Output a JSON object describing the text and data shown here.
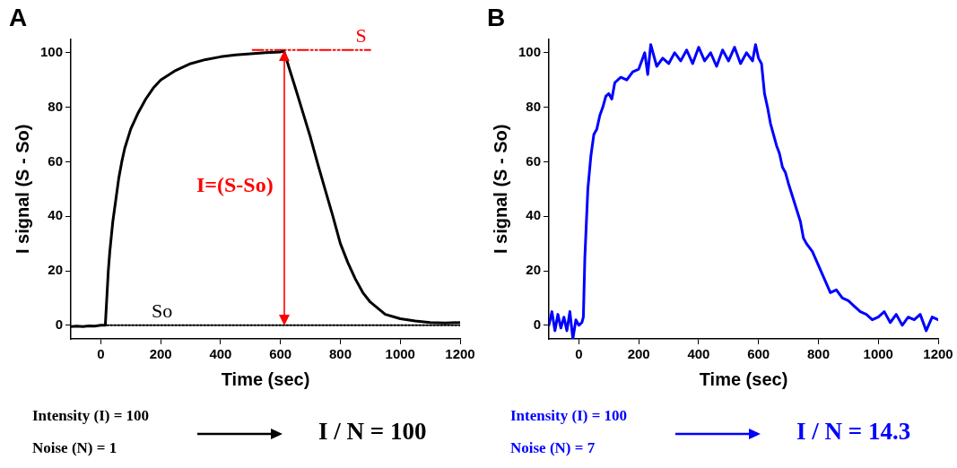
{
  "chart_data": [
    {
      "type": "line",
      "title": "A",
      "xlabel": "Time (sec)",
      "ylabel": "I signal (S - So)",
      "xlim": [
        -100,
        1200
      ],
      "xticks": [
        0,
        200,
        400,
        600,
        800,
        1000,
        1200
      ],
      "ylim": [
        -5,
        105
      ],
      "yticks": [
        0,
        20,
        40,
        60,
        80,
        100
      ],
      "grid": false,
      "legend": false,
      "marker": "none",
      "series": [
        {
          "color": "#000000",
          "line_style": "solid",
          "x": [
            -100,
            -80,
            -60,
            -40,
            -20,
            0,
            15,
            20,
            25,
            30,
            40,
            50,
            60,
            70,
            80,
            100,
            125,
            150,
            175,
            200,
            250,
            300,
            350,
            400,
            450,
            500,
            550,
            600,
            612,
            630,
            650,
            675,
            700,
            725,
            750,
            775,
            800,
            825,
            850,
            875,
            900,
            950,
            1000,
            1050,
            1100,
            1150,
            1200
          ],
          "values": [
            -0.5,
            -0.3,
            -0.5,
            -0.2,
            -0.3,
            0,
            0,
            10,
            20,
            27,
            38,
            46,
            54,
            60,
            65,
            72,
            78,
            83,
            87,
            90,
            93.5,
            96,
            97.5,
            98.5,
            99.2,
            99.6,
            100,
            100.3,
            100.5,
            94,
            87,
            78,
            69,
            59,
            49.5,
            40,
            30,
            23,
            17,
            12,
            8.5,
            4,
            2.4,
            1.6,
            1,
            0.8,
            1
          ]
        },
        {
          "name": "S",
          "color": "#ff0000",
          "line_style": "dashed",
          "x": [
            507,
            900
          ],
          "values": [
            101,
            101
          ]
        },
        {
          "name": "So",
          "color": "#000000",
          "line_style": "dotted",
          "x": [
            20,
            1200
          ],
          "values": [
            0,
            0
          ]
        }
      ],
      "annotations": [
        "I=(S-So)",
        "Intensity (I) = 100",
        "Noise (N) = 1",
        "I / N = 100"
      ]
    },
    {
      "type": "line",
      "title": "B",
      "xlabel": "Time (sec)",
      "ylabel": "I signal (S - So)",
      "xlim": [
        -100,
        1200
      ],
      "xticks": [
        0,
        200,
        400,
        600,
        800,
        1000,
        1200
      ],
      "ylim": [
        -5,
        105
      ],
      "yticks": [
        0,
        20,
        40,
        60,
        80,
        100
      ],
      "grid": false,
      "legend": false,
      "marker": "none",
      "series": [
        {
          "color": "#0000ff",
          "line_style": "solid",
          "x": [
            -100,
            -90,
            -80,
            -70,
            -60,
            -50,
            -40,
            -30,
            -20,
            -10,
            0,
            10,
            15,
            20,
            30,
            40,
            50,
            60,
            70,
            80,
            90,
            100,
            110,
            120,
            140,
            160,
            180,
            200,
            220,
            230,
            240,
            260,
            280,
            300,
            320,
            340,
            360,
            380,
            400,
            420,
            440,
            460,
            480,
            500,
            520,
            540,
            560,
            580,
            590,
            600,
            610,
            620,
            630,
            640,
            650,
            660,
            670,
            680,
            690,
            700,
            720,
            740,
            750,
            760,
            780,
            800,
            820,
            840,
            860,
            880,
            900,
            920,
            940,
            960,
            980,
            1000,
            1020,
            1040,
            1060,
            1080,
            1100,
            1120,
            1140,
            1160,
            1180,
            1200
          ],
          "values": [
            0,
            5,
            -2,
            4,
            -1,
            3,
            -2,
            5,
            -5,
            2,
            0,
            1,
            3,
            25,
            50,
            62,
            70,
            72,
            77,
            80,
            84,
            85,
            83,
            89,
            91,
            90,
            93,
            94,
            100,
            92,
            103,
            95,
            98,
            96,
            100,
            97,
            101,
            96,
            102,
            97,
            100,
            95,
            101,
            97,
            102,
            96,
            100,
            97,
            103,
            98,
            96,
            85,
            80,
            74,
            70,
            66,
            63,
            58,
            56,
            52,
            45,
            38,
            32,
            30,
            27,
            22,
            17,
            12,
            13,
            10,
            9,
            7,
            5,
            4,
            2,
            3,
            5,
            1,
            4,
            0,
            3,
            2,
            4,
            -2,
            3,
            2
          ]
        }
      ],
      "annotations": [
        "Intensity (I) = 100",
        "Noise (N) = 7",
        "I / N = 14.3"
      ]
    }
  ]
}
